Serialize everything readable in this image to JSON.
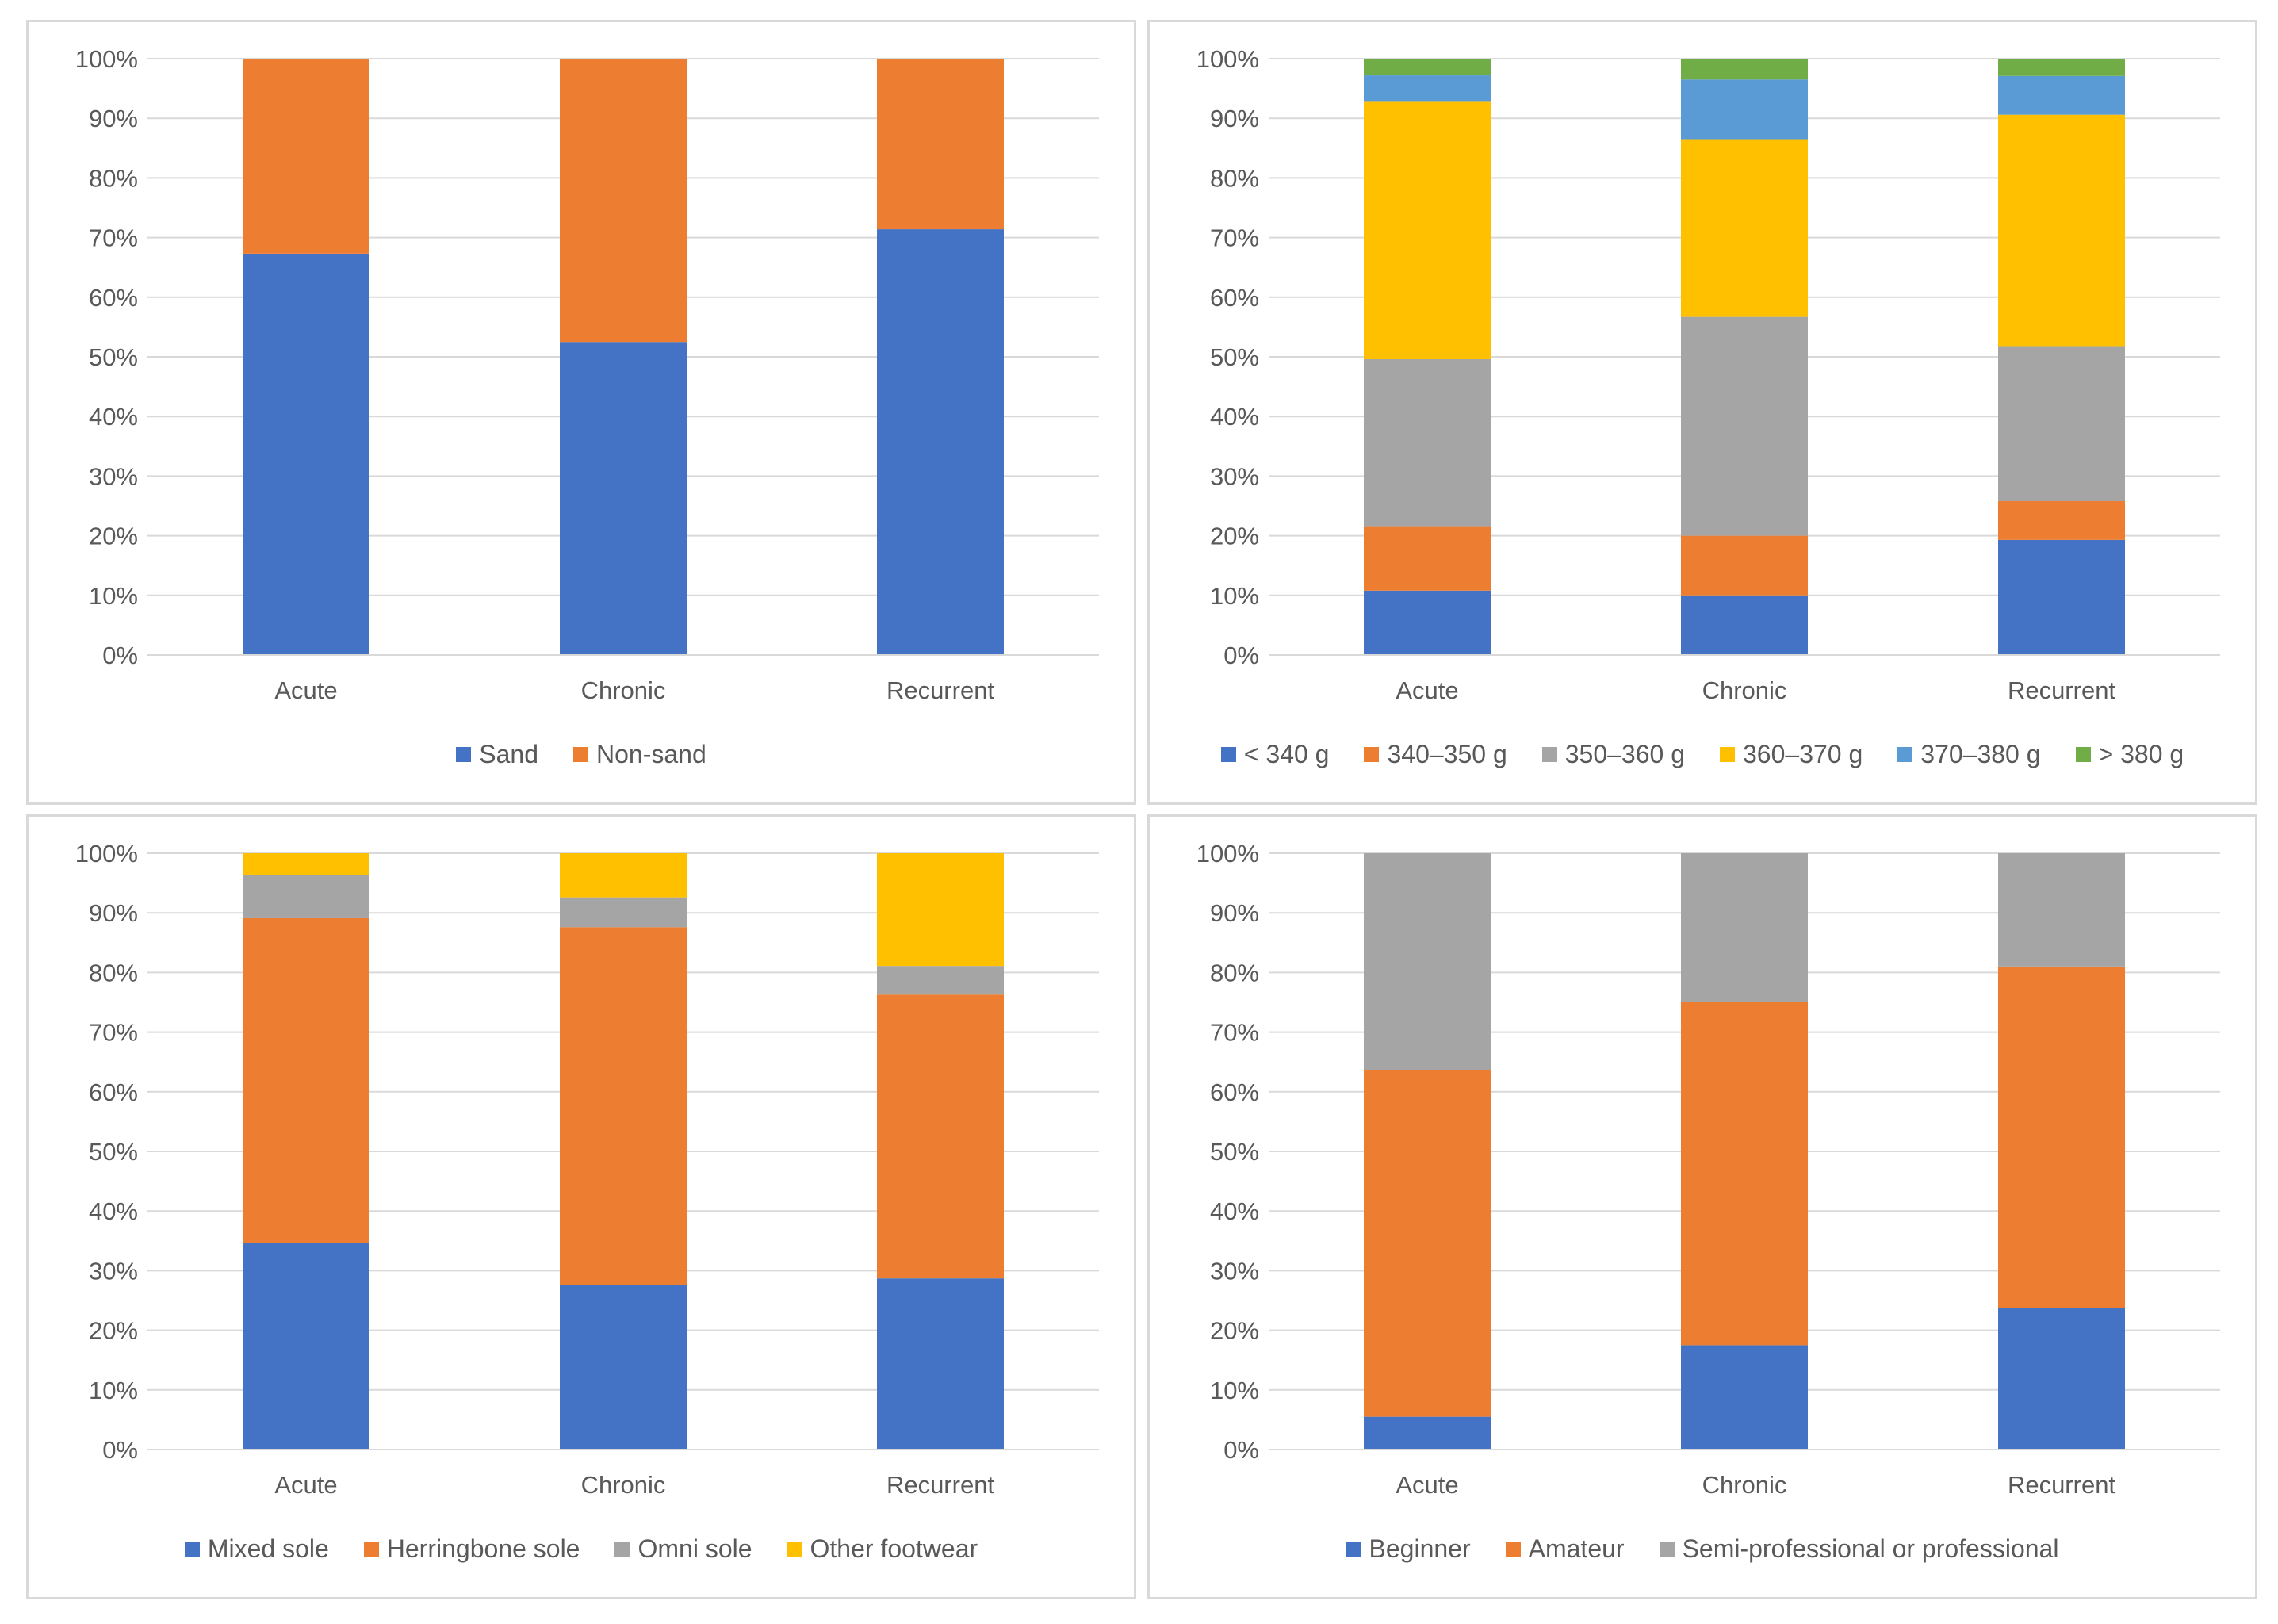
{
  "chart_data": [
    {
      "type": "bar",
      "stacked": true,
      "percent": true,
      "categories": [
        "Acute",
        "Chronic",
        "Recurrent"
      ],
      "yticks": [
        "0%",
        "10%",
        "20%",
        "30%",
        "40%",
        "50%",
        "60%",
        "70%",
        "80%",
        "90%",
        "100%"
      ],
      "ylim": [
        0,
        100
      ],
      "grid": true,
      "legend_position": "bottom",
      "series": [
        {
          "name": "Sand",
          "color": "#4472C4",
          "values": [
            67.3,
            52.5,
            71.4
          ]
        },
        {
          "name": "Non-sand",
          "color": "#ED7D31",
          "values": [
            32.7,
            47.5,
            28.6
          ]
        }
      ]
    },
    {
      "type": "bar",
      "stacked": true,
      "percent": true,
      "categories": [
        "Acute",
        "Chronic",
        "Recurrent"
      ],
      "yticks": [
        "0%",
        "10%",
        "20%",
        "30%",
        "40%",
        "50%",
        "60%",
        "70%",
        "80%",
        "90%",
        "100%"
      ],
      "ylim": [
        0,
        100
      ],
      "grid": true,
      "legend_position": "bottom",
      "series": [
        {
          "name": "< 340 g",
          "color": "#4472C4",
          "values": [
            10.8,
            10.0,
            19.3
          ]
        },
        {
          "name": "340–350 g",
          "color": "#ED7D31",
          "values": [
            10.8,
            10.0,
            6.5
          ]
        },
        {
          "name": "350–360 g",
          "color": "#A5A5A5",
          "values": [
            28.0,
            36.7,
            26.0
          ]
        },
        {
          "name": "360–370 g",
          "color": "#FFC000",
          "values": [
            43.3,
            29.8,
            38.8
          ]
        },
        {
          "name": "370–380 g",
          "color": "#5B9BD5",
          "values": [
            4.3,
            10.0,
            6.5
          ]
        },
        {
          "name": "> 380 g",
          "color": "#70AD47",
          "values": [
            2.8,
            3.5,
            2.9
          ]
        }
      ]
    },
    {
      "type": "bar",
      "stacked": true,
      "percent": true,
      "categories": [
        "Acute",
        "Chronic",
        "Recurrent"
      ],
      "yticks": [
        "0%",
        "10%",
        "20%",
        "30%",
        "40%",
        "50%",
        "60%",
        "70%",
        "80%",
        "90%",
        "100%"
      ],
      "ylim": [
        0,
        100
      ],
      "grid": true,
      "legend_position": "bottom",
      "series": [
        {
          "name": "Mixed sole",
          "color": "#4472C4",
          "values": [
            34.6,
            27.6,
            28.7
          ]
        },
        {
          "name": "Herringbone sole",
          "color": "#ED7D31",
          "values": [
            54.5,
            60.0,
            47.6
          ]
        },
        {
          "name": "Omni sole",
          "color": "#A5A5A5",
          "values": [
            7.3,
            5.0,
            4.8
          ]
        },
        {
          "name": "Other footwear",
          "color": "#FFC000",
          "values": [
            3.6,
            7.4,
            18.9
          ]
        }
      ]
    },
    {
      "type": "bar",
      "stacked": true,
      "percent": true,
      "categories": [
        "Acute",
        "Chronic",
        "Recurrent"
      ],
      "yticks": [
        "0%",
        "10%",
        "20%",
        "30%",
        "40%",
        "50%",
        "60%",
        "70%",
        "80%",
        "90%",
        "100%"
      ],
      "ylim": [
        0,
        100
      ],
      "grid": true,
      "legend_position": "bottom",
      "series": [
        {
          "name": "Beginner",
          "color": "#4472C4",
          "values": [
            5.5,
            17.5,
            23.8
          ]
        },
        {
          "name": "Amateur",
          "color": "#ED7D31",
          "values": [
            58.2,
            57.5,
            57.2
          ]
        },
        {
          "name": "Semi-professional or professional",
          "color": "#A5A5A5",
          "values": [
            36.3,
            25.0,
            19.0
          ]
        }
      ]
    }
  ]
}
